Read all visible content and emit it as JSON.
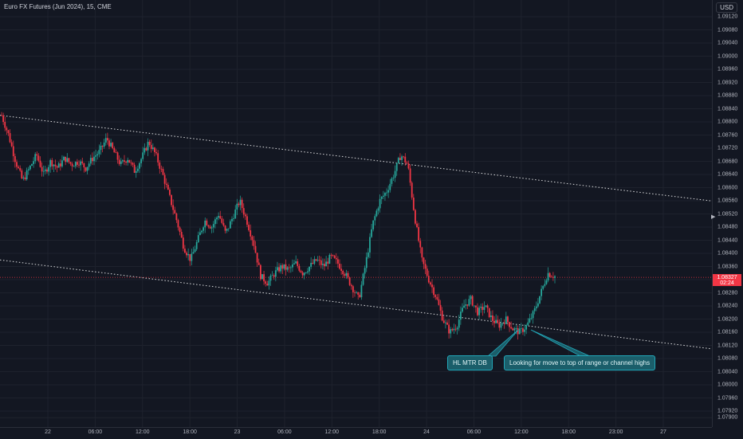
{
  "header": {
    "symbol_title": "Euro FX Futures (Jun 2024), 15, CME",
    "currency": "USD"
  },
  "last_price": {
    "value": "1.08327",
    "countdown": "02:24"
  },
  "annotations": [
    "HL MTR DB",
    "Looking for move to top of range or channel highs"
  ],
  "colors": {
    "background": "#131722",
    "up": "#26a69a",
    "down": "#f23645",
    "grid": "#1e222d",
    "trendline": "#ffffff",
    "callout_bg": "#1b5e6a",
    "callout_border": "#22a7b8"
  },
  "chart_data": {
    "type": "candlestick",
    "title": "Euro FX Futures (Jun 2024), 15, CME",
    "ylim": [
      1.079,
      1.0913
    ],
    "y_ticks": [
      "1.07900",
      "1.07920",
      "1.07960",
      "1.08000",
      "1.08040",
      "1.08080",
      "1.08120",
      "1.08160",
      "1.08200",
      "1.08240",
      "1.08280",
      "1.08320",
      "1.08360",
      "1.08400",
      "1.08440",
      "1.08480",
      "1.08520",
      "1.08560",
      "1.08600",
      "1.08640",
      "1.08680",
      "1.08720",
      "1.08760",
      "1.08800",
      "1.08840",
      "1.08880",
      "1.08920",
      "1.08960",
      "1.09000",
      "1.09040",
      "1.09080",
      "1.09120"
    ],
    "x_ticks": [
      "22",
      "06:00",
      "12:00",
      "18:00",
      "23",
      "06:00",
      "12:00",
      "18:00",
      "24",
      "06:00",
      "12:00",
      "18:00",
      "23:00",
      "27"
    ],
    "trendlines": [
      {
        "from_price": 1.0882,
        "to_price": 1.0856
      },
      {
        "from_price": 1.0838,
        "to_price": 1.0811
      }
    ],
    "price_path": [
      1.0882,
      1.0876,
      1.0868,
      1.0862,
      1.0866,
      1.087,
      1.0864,
      1.0868,
      1.0866,
      1.0869,
      1.0867,
      1.0868,
      1.0866,
      1.0869,
      1.0871,
      1.0875,
      1.0871,
      1.0867,
      1.0869,
      1.0865,
      1.0869,
      1.0874,
      1.087,
      1.0864,
      1.0857,
      1.085,
      1.0842,
      1.0838,
      1.0844,
      1.085,
      1.0848,
      1.0852,
      1.0846,
      1.0851,
      1.0856,
      1.085,
      1.0843,
      1.0833,
      1.0831,
      1.0834,
      1.0836,
      1.0835,
      1.0837,
      1.0834,
      1.0836,
      1.0838,
      1.0836,
      1.0839,
      1.0837,
      1.0834,
      1.083,
      1.0826,
      1.0837,
      1.0849,
      1.0856,
      1.0859,
      1.0864,
      1.087,
      1.0867,
      1.0851,
      1.0838,
      1.0832,
      1.0827,
      1.082,
      1.0816,
      1.0818,
      1.0824,
      1.0826,
      1.0822,
      1.0824,
      1.082,
      1.0818,
      1.082,
      1.0817,
      1.0816,
      1.0818,
      1.0822,
      1.0828,
      1.0834,
      1.0833
    ]
  }
}
